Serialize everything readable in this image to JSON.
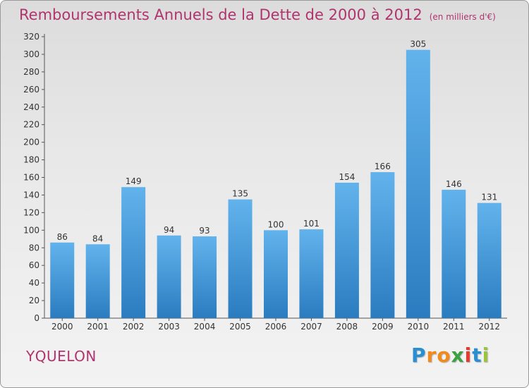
{
  "chart_data": {
    "type": "bar",
    "title": "Remboursements Annuels de la Dette de 2000 à 2012",
    "unit_note": "(en milliers d'€)",
    "categories": [
      "2000",
      "2001",
      "2002",
      "2003",
      "2004",
      "2005",
      "2006",
      "2007",
      "2008",
      "2009",
      "2010",
      "2011",
      "2012"
    ],
    "values": [
      86,
      84,
      149,
      94,
      93,
      135,
      100,
      101,
      154,
      166,
      305,
      146,
      131
    ],
    "ylim": [
      0,
      320
    ],
    "yticks": [
      0,
      20,
      40,
      60,
      80,
      100,
      120,
      140,
      160,
      180,
      200,
      220,
      240,
      260,
      280,
      300,
      320
    ],
    "xlabel": "",
    "ylabel": "",
    "bar_color": "#3d96d8",
    "grid": false
  },
  "footer": {
    "commune": "YQUELON",
    "logo_letters": [
      "P",
      "r",
      "o",
      "x",
      "i",
      "t",
      "i"
    ]
  }
}
